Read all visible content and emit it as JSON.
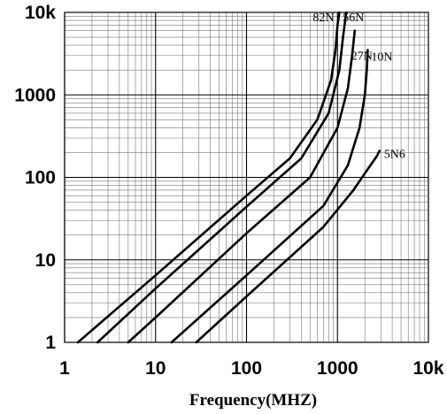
{
  "chart_data": {
    "type": "line",
    "xlabel": "Frequency(MHZ)",
    "ylabel": "",
    "x_scale": "log",
    "y_scale": "log",
    "xlim": [
      1,
      10000
    ],
    "ylim": [
      1,
      10000
    ],
    "x_ticks": [
      {
        "value": 1,
        "label": "1"
      },
      {
        "value": 10,
        "label": "10"
      },
      {
        "value": 100,
        "label": "100"
      },
      {
        "value": 1000,
        "label": "1000"
      },
      {
        "value": 10000,
        "label": "10k"
      }
    ],
    "y_ticks": [
      {
        "value": 1,
        "label": "1"
      },
      {
        "value": 10,
        "label": "10"
      },
      {
        "value": 100,
        "label": "100"
      },
      {
        "value": 1000,
        "label": "1000"
      },
      {
        "value": 10000,
        "label": "10k"
      }
    ],
    "grid": true,
    "series": [
      {
        "name": "82N",
        "x": [
          1.4,
          10,
          100,
          300,
          600,
          850,
          950,
          1000,
          1050
        ],
        "y": [
          1,
          6.5,
          60,
          170,
          500,
          1500,
          3500,
          7000,
          10000
        ]
      },
      {
        "name": "56N",
        "x": [
          2.3,
          10,
          100,
          400,
          800,
          1050,
          1150,
          1250
        ],
        "y": [
          1,
          4.5,
          44,
          170,
          600,
          2000,
          5000,
          10000
        ]
      },
      {
        "name": "27N",
        "x": [
          5,
          10,
          100,
          500,
          1000,
          1300,
          1450,
          1550
        ],
        "y": [
          1,
          2,
          21,
          100,
          400,
          1200,
          3000,
          6000
        ]
      },
      {
        "name": "10N",
        "x": [
          15,
          100,
          700,
          1300,
          1750,
          2000,
          2100,
          2150
        ],
        "y": [
          1,
          6.5,
          45,
          140,
          400,
          1000,
          2000,
          3500
        ]
      },
      {
        "name": "5N6",
        "x": [
          28,
          100,
          700,
          1500,
          2200,
          2700,
          2900
        ],
        "y": [
          1,
          3.6,
          25,
          70,
          130,
          180,
          210
        ]
      }
    ]
  }
}
